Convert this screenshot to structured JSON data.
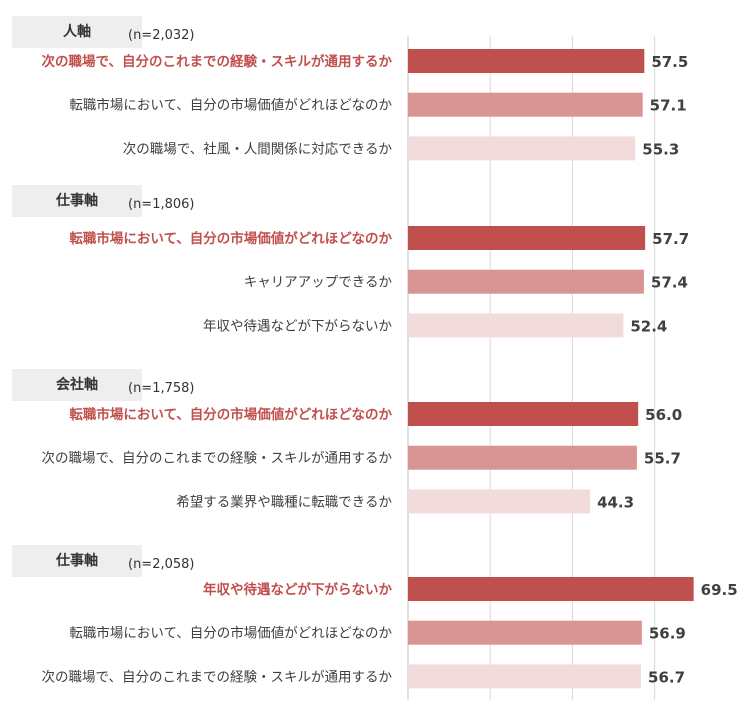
{
  "chart_data": {
    "type": "bar",
    "orientation": "horizontal",
    "grid": true,
    "colors": {
      "strong": "#c0504d",
      "medium": "#d99594",
      "light": "#f2dcdb",
      "grid": "#d9d9d9"
    },
    "groups": [
      {
        "axis_label": "人軸",
        "n_label": "(n=2,032)",
        "items": [
          {
            "label": "次の職場で、自分のこれまでの経験・スキルが通用するか",
            "value": 57.5,
            "value_label": "57.5",
            "highlight": true,
            "shade": "strong"
          },
          {
            "label": "転職市場において、自分の市場価値がどれほどなのか",
            "value": 57.1,
            "value_label": "57.1",
            "highlight": false,
            "shade": "medium"
          },
          {
            "label": "次の職場で、社風・人間関係に対応できるか",
            "value": 55.3,
            "value_label": "55.3",
            "highlight": false,
            "shade": "light"
          }
        ]
      },
      {
        "axis_label": "仕事軸",
        "n_label": "(n=1,806)",
        "items": [
          {
            "label": "転職市場において、自分の市場価値がどれほどなのか",
            "value": 57.7,
            "value_label": "57.7",
            "highlight": true,
            "shade": "strong"
          },
          {
            "label": "キャリアアップできるか",
            "value": 57.4,
            "value_label": "57.4",
            "highlight": false,
            "shade": "medium"
          },
          {
            "label": "年収や待遇などが下がらないか",
            "value": 52.4,
            "value_label": "52.4",
            "highlight": false,
            "shade": "light"
          }
        ]
      },
      {
        "axis_label": "会社軸",
        "n_label": "(n=1,758)",
        "items": [
          {
            "label": "転職市場において、自分の市場価値がどれほどなのか",
            "value": 56.0,
            "value_label": "56.0",
            "highlight": true,
            "shade": "strong"
          },
          {
            "label": "次の職場で、自分のこれまでの経験・スキルが通用するか",
            "value": 55.7,
            "value_label": "55.7",
            "highlight": false,
            "shade": "medium"
          },
          {
            "label": "希望する業界や職種に転職できるか",
            "value": 44.3,
            "value_label": "44.3",
            "highlight": false,
            "shade": "light"
          }
        ]
      },
      {
        "axis_label": "仕事軸",
        "n_label": "(n=2,058)",
        "items": [
          {
            "label": "年収や待遇などが下がらないか",
            "value": 69.5,
            "value_label": "69.5",
            "highlight": true,
            "shade": "strong"
          },
          {
            "label": "転職市場において、自分の市場価値がどれほどなのか",
            "value": 56.9,
            "value_label": "56.9",
            "highlight": false,
            "shade": "medium"
          },
          {
            "label": "次の職場で、自分のこれまでの経験・スキルが通用するか",
            "value": 56.7,
            "value_label": "56.7",
            "highlight": false,
            "shade": "light"
          }
        ]
      }
    ]
  }
}
